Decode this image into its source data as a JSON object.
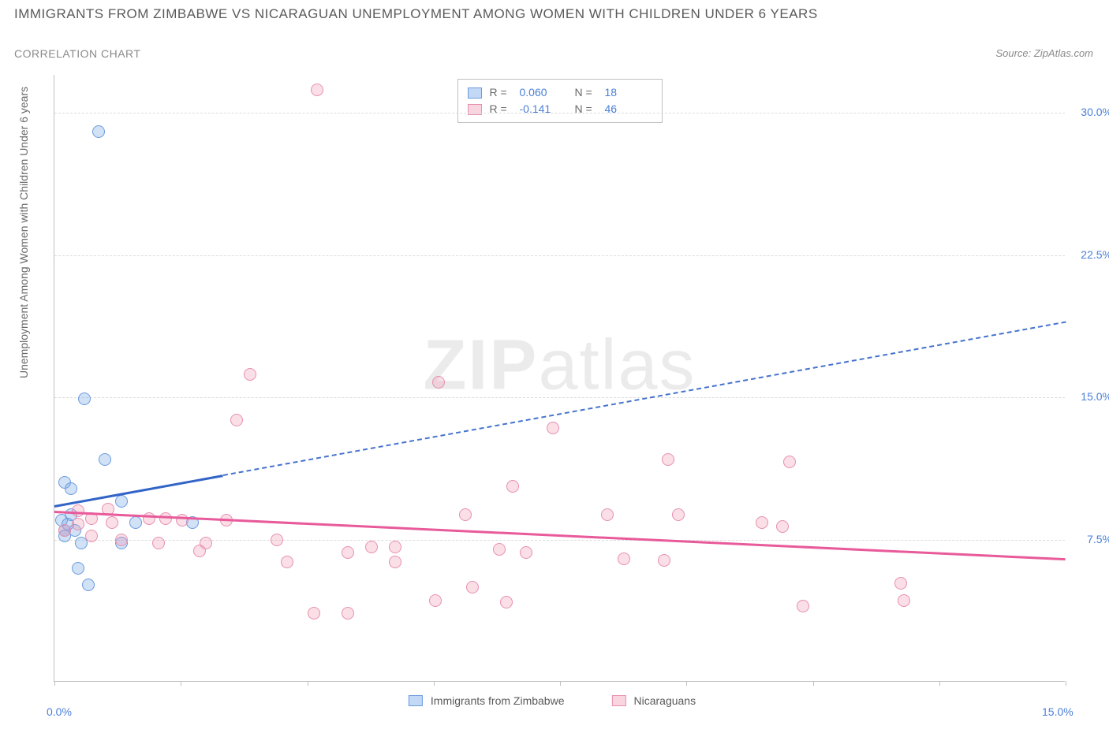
{
  "title": "IMMIGRANTS FROM ZIMBABWE VS NICARAGUAN UNEMPLOYMENT AMONG WOMEN WITH CHILDREN UNDER 6 YEARS",
  "subtitle": "CORRELATION CHART",
  "source": "Source: ZipAtlas.com",
  "watermark_bold": "ZIP",
  "watermark_light": "atlas",
  "ylabel": "Unemployment Among Women with Children Under 6 years",
  "legend": {
    "series1_label": "Immigrants from Zimbabwe",
    "series2_label": "Nicaraguans"
  },
  "stats": {
    "r_label": "R =",
    "n_label": "N =",
    "series1": {
      "r": "0.060",
      "n": "18"
    },
    "series2": {
      "r": "-0.141",
      "n": "46"
    }
  },
  "chart": {
    "type": "scatter",
    "background_color": "#ffffff",
    "grid_color": "#dcdcdc",
    "axis_color": "#c0c0c0",
    "tick_label_color": "#4a7fd8",
    "xlim": [
      0,
      15
    ],
    "ylim": [
      0,
      32
    ],
    "xtick_positions": [
      0,
      1.875,
      3.75,
      5.625,
      7.5,
      9.375,
      11.25,
      13.125,
      15
    ],
    "xtick_labels": {
      "first": "0.0%",
      "last": "15.0%"
    },
    "ytick_positions": [
      7.5,
      15.0,
      22.5,
      30.0
    ],
    "ytick_labels": [
      "7.5%",
      "15.0%",
      "22.5%",
      "30.0%"
    ],
    "series": [
      {
        "name": "Immigrants from Zimbabwe",
        "marker_color_fill": "rgba(122,168,230,0.35)",
        "marker_color_stroke": "#6a9be0",
        "marker_size": 16,
        "trend_color": "#3264c8",
        "trend_solid_xrange": [
          0,
          2.5
        ],
        "trend_dash_xrange": [
          2.5,
          15
        ],
        "trend_y_at_x0": 9.3,
        "trend_y_at_xmax": 19.0,
        "points": [
          [
            0.65,
            29.0
          ],
          [
            0.45,
            14.9
          ],
          [
            0.75,
            11.7
          ],
          [
            0.15,
            10.5
          ],
          [
            0.25,
            10.2
          ],
          [
            1.0,
            9.5
          ],
          [
            0.1,
            8.5
          ],
          [
            0.25,
            8.8
          ],
          [
            0.2,
            8.3
          ],
          [
            0.3,
            8.0
          ],
          [
            0.15,
            8.0
          ],
          [
            0.15,
            7.7
          ],
          [
            1.0,
            7.3
          ],
          [
            0.4,
            7.3
          ],
          [
            0.35,
            6.0
          ],
          [
            0.5,
            5.1
          ],
          [
            2.05,
            8.4
          ],
          [
            1.2,
            8.4
          ]
        ]
      },
      {
        "name": "Nicaraguans",
        "marker_color_fill": "rgba(240,150,175,0.3)",
        "marker_color_stroke": "#e78fb0",
        "marker_size": 16,
        "trend_color": "#e85a9a",
        "trend_solid_xrange": [
          0,
          15
        ],
        "trend_y_at_x0": 9.0,
        "trend_y_at_xmax": 6.5,
        "points": [
          [
            3.9,
            31.2
          ],
          [
            2.9,
            16.2
          ],
          [
            5.7,
            15.8
          ],
          [
            2.7,
            13.8
          ],
          [
            7.4,
            13.4
          ],
          [
            9.1,
            11.7
          ],
          [
            10.9,
            11.6
          ],
          [
            6.8,
            10.3
          ],
          [
            0.35,
            9.0
          ],
          [
            0.55,
            8.6
          ],
          [
            0.8,
            9.1
          ],
          [
            0.85,
            8.4
          ],
          [
            0.35,
            8.3
          ],
          [
            0.15,
            8.0
          ],
          [
            1.4,
            8.6
          ],
          [
            1.65,
            8.6
          ],
          [
            1.9,
            8.5
          ],
          [
            2.55,
            8.5
          ],
          [
            2.25,
            7.3
          ],
          [
            2.15,
            6.9
          ],
          [
            1.55,
            7.3
          ],
          [
            1.0,
            7.5
          ],
          [
            3.3,
            7.5
          ],
          [
            3.45,
            6.3
          ],
          [
            3.85,
            3.6
          ],
          [
            4.35,
            3.6
          ],
          [
            4.35,
            6.8
          ],
          [
            4.7,
            7.1
          ],
          [
            5.05,
            7.1
          ],
          [
            5.05,
            6.3
          ],
          [
            6.2,
            5.0
          ],
          [
            5.65,
            4.3
          ],
          [
            6.7,
            4.2
          ],
          [
            6.6,
            7.0
          ],
          [
            7.0,
            6.8
          ],
          [
            8.2,
            8.8
          ],
          [
            8.45,
            6.5
          ],
          [
            9.05,
            6.4
          ],
          [
            9.25,
            8.8
          ],
          [
            10.5,
            8.4
          ],
          [
            10.8,
            8.2
          ],
          [
            11.1,
            4.0
          ],
          [
            12.55,
            5.2
          ],
          [
            12.6,
            4.3
          ],
          [
            6.1,
            8.8
          ],
          [
            0.55,
            7.7
          ]
        ]
      }
    ]
  }
}
